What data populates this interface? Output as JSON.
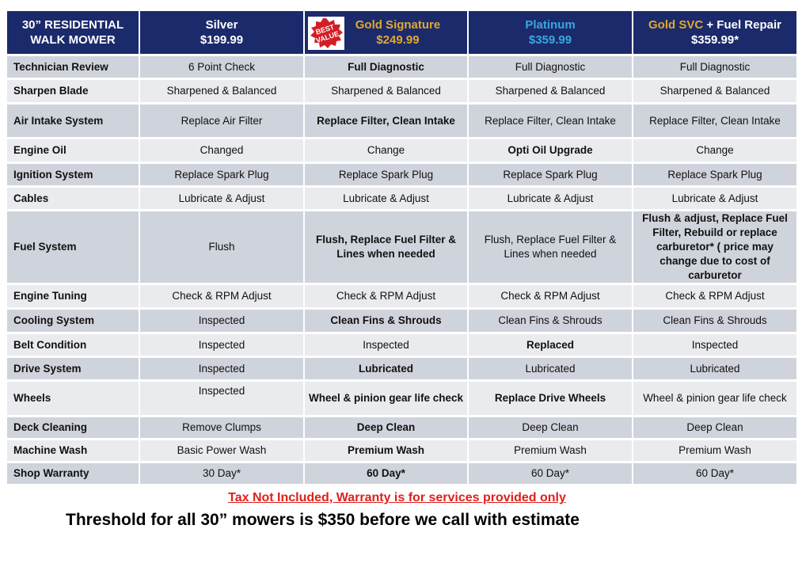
{
  "header": {
    "title_line1": "30” RESIDENTIAL",
    "title_line2": "WALK MOWER",
    "columns": [
      {
        "name": "Silver",
        "price": "$199.99"
      },
      {
        "name": "Gold Signature",
        "price": "$249.99",
        "badge": "BEST VALUE",
        "badge_line1": "BEST",
        "badge_line2": "VALUE"
      },
      {
        "name": "Platinum",
        "price": "$359.99"
      },
      {
        "name_part1": "Gold SVC",
        "name_part2": " + Fuel Repair",
        "price": "$359.99*"
      }
    ]
  },
  "rows": [
    {
      "label": "Technician Review",
      "cells": [
        "6 Point Check",
        "Full Diagnostic",
        "Full Diagnostic",
        "Full Diagnostic"
      ]
    },
    {
      "label": "Sharpen Blade",
      "cells": [
        "Sharpened & Balanced",
        "Sharpened & Balanced",
        "Sharpened & Balanced",
        "Sharpened & Balanced"
      ]
    },
    {
      "label": "Air Intake System",
      "cells": [
        "Replace Air Filter",
        "Replace Filter, Clean Intake",
        "Replace Filter, Clean Intake",
        "Replace Filter, Clean Intake"
      ]
    },
    {
      "label": "Engine Oil",
      "cells": [
        "Changed",
        "Change",
        "Opti Oil Upgrade",
        "Change"
      ]
    },
    {
      "label": "Ignition System",
      "cells": [
        "Replace Spark Plug",
        "Replace Spark Plug",
        "Replace Spark Plug",
        "Replace Spark Plug"
      ]
    },
    {
      "label": "Cables",
      "cells": [
        "Lubricate & Adjust",
        "Lubricate & Adjust",
        "Lubricate & Adjust",
        "Lubricate & Adjust"
      ]
    },
    {
      "label": "Fuel System",
      "cells": [
        "Flush",
        "Flush, Replace Fuel Filter & Lines when needed",
        "Flush, Replace Fuel Filter & Lines when needed",
        "Flush & adjust, Replace Fuel Filter, Rebuild or replace carburetor* ( price may change due to cost of carburetor"
      ]
    },
    {
      "label": "Engine Tuning",
      "cells": [
        "Check & RPM Adjust",
        "Check & RPM Adjust",
        "Check & RPM Adjust",
        "Check & RPM Adjust"
      ]
    },
    {
      "label": "Cooling System",
      "cells": [
        "Inspected",
        "Clean Fins & Shrouds",
        "Clean Fins & Shrouds",
        "Clean Fins & Shrouds"
      ]
    },
    {
      "label": "Belt Condition",
      "cells": [
        "Inspected",
        "Inspected",
        "Replaced",
        "Inspected"
      ]
    },
    {
      "label": "Drive System",
      "cells": [
        "Inspected",
        "Lubricated",
        "Lubricated",
        "Lubricated"
      ]
    },
    {
      "label": "Wheels",
      "cells": [
        "Inspected",
        "Wheel & pinion gear life check",
        "Replace Drive Wheels",
        "Wheel & pinion gear life check"
      ]
    },
    {
      "label": "Deck Cleaning",
      "cells": [
        "Remove Clumps",
        "Deep Clean",
        "Deep Clean",
        "Deep Clean"
      ]
    },
    {
      "label": "Machine Wash",
      "cells": [
        "Basic Power Wash",
        "Premium Wash",
        "Premium Wash",
        "Premium Wash"
      ]
    },
    {
      "label": "Shop Warranty",
      "cells": [
        "30 Day*",
        "60 Day*",
        "60 Day*",
        "60 Day*"
      ]
    }
  ],
  "notes": {
    "tax": "Tax Not Included, Warranty is for services provided only",
    "threshold": "Threshold for all 30” mowers is $350 before we call with estimate"
  },
  "colors": {
    "header_bg": "#1b2a6b",
    "gold_text": "#d9a326",
    "platinum_text": "#2d9fd9",
    "note_red": "#e0201b",
    "badge_red": "#d21f26"
  }
}
